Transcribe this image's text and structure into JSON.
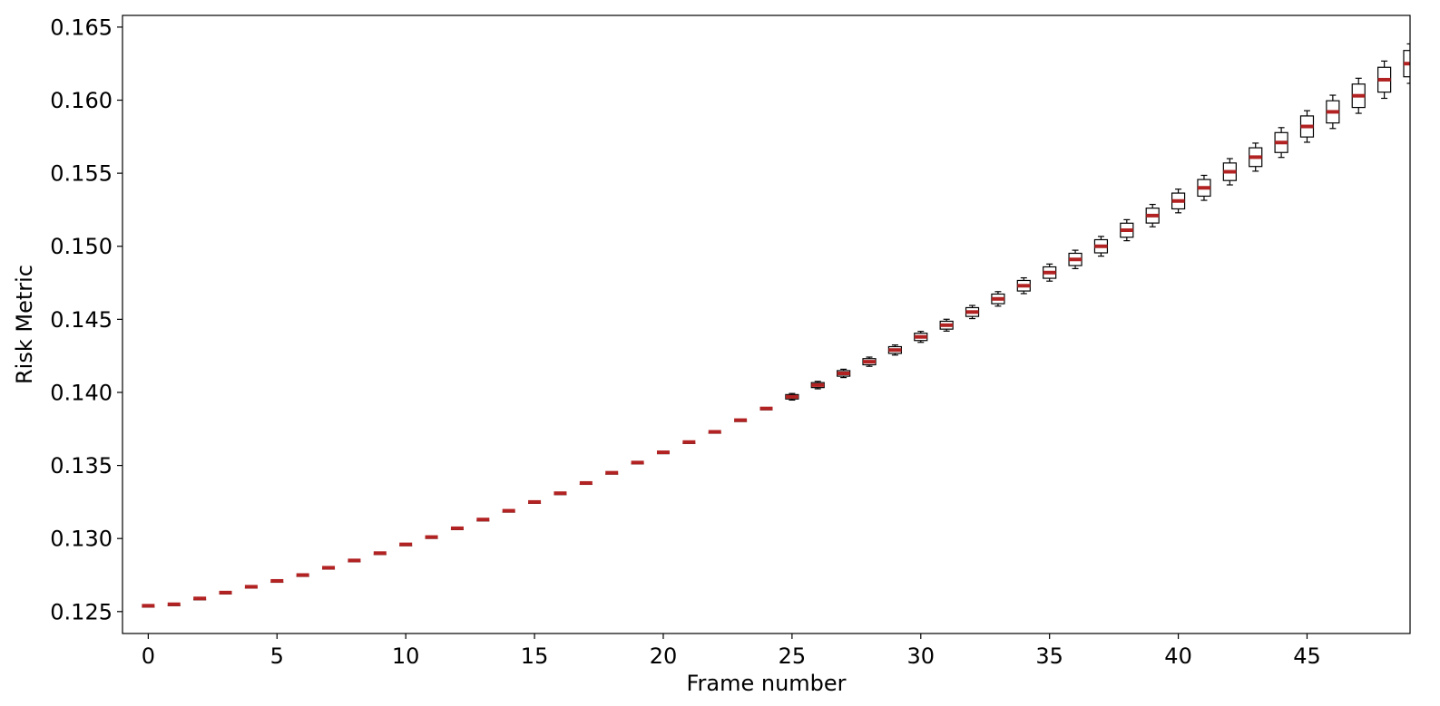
{
  "chart_data": {
    "type": "box",
    "title": "",
    "xlabel": "Frame number",
    "ylabel": "Risk Metric",
    "xlim": [
      -1,
      49
    ],
    "ylim": [
      0.1235,
      0.1658
    ],
    "xticks": [
      0,
      5,
      10,
      15,
      20,
      25,
      30,
      35,
      40,
      45
    ],
    "xtick_labels": [
      "0",
      "5",
      "10",
      "15",
      "20",
      "25",
      "30",
      "35",
      "40",
      "45"
    ],
    "yticks": [
      0.125,
      0.13,
      0.135,
      0.14,
      0.145,
      0.15,
      0.155,
      0.16,
      0.165
    ],
    "ytick_labels": [
      "0.125",
      "0.130",
      "0.135",
      "0.140",
      "0.145",
      "0.150",
      "0.155",
      "0.160",
      "0.165"
    ],
    "grid": false,
    "colors": {
      "median": "#b22222",
      "box_edge": "#000000",
      "box_fill": "#ffffff"
    },
    "frames": [
      0,
      1,
      2,
      3,
      4,
      5,
      6,
      7,
      8,
      9,
      10,
      11,
      12,
      13,
      14,
      15,
      16,
      17,
      18,
      19,
      20,
      21,
      22,
      23,
      24,
      25,
      26,
      27,
      28,
      29,
      30,
      31,
      32,
      33,
      34,
      35,
      36,
      37,
      38,
      39,
      40,
      41,
      42,
      43,
      44,
      45,
      46,
      47,
      48,
      49
    ],
    "medians": [
      0.1254,
      0.1255,
      0.1259,
      0.1263,
      0.1267,
      0.1271,
      0.1275,
      0.128,
      0.1285,
      0.129,
      0.1296,
      0.1301,
      0.1307,
      0.1313,
      0.1319,
      0.1325,
      0.1331,
      0.1338,
      0.1345,
      0.1352,
      0.1359,
      0.1366,
      0.1373,
      0.1381,
      0.1389,
      0.1397,
      0.1405,
      0.1413,
      0.1421,
      0.1429,
      0.1438,
      0.1446,
      0.1455,
      0.1464,
      0.1473,
      0.1482,
      0.1491,
      0.15,
      0.1511,
      0.1521,
      0.1531,
      0.154,
      0.1551,
      0.1561,
      0.1571,
      0.1582,
      0.1592,
      0.1603,
      0.1614,
      0.1625
    ],
    "spreads": [
      5e-05,
      5e-05,
      5e-05,
      5e-05,
      5e-05,
      5e-05,
      5e-05,
      5e-05,
      5e-05,
      5e-05,
      5e-05,
      5e-05,
      5e-05,
      5e-05,
      5e-05,
      5e-05,
      5e-05,
      6e-05,
      7e-05,
      8e-05,
      9e-05,
      0.0001,
      0.00011,
      0.00012,
      0.00013,
      0.00015,
      0.00017,
      0.00019,
      0.00021,
      0.00023,
      0.00025,
      0.00027,
      0.0003,
      0.00033,
      0.00036,
      0.00039,
      0.00042,
      0.00045,
      0.00048,
      0.00051,
      0.00054,
      0.00057,
      0.0006,
      0.00064,
      0.00068,
      0.00072,
      0.00076,
      0.0008,
      0.00085,
      0.0009
    ]
  }
}
